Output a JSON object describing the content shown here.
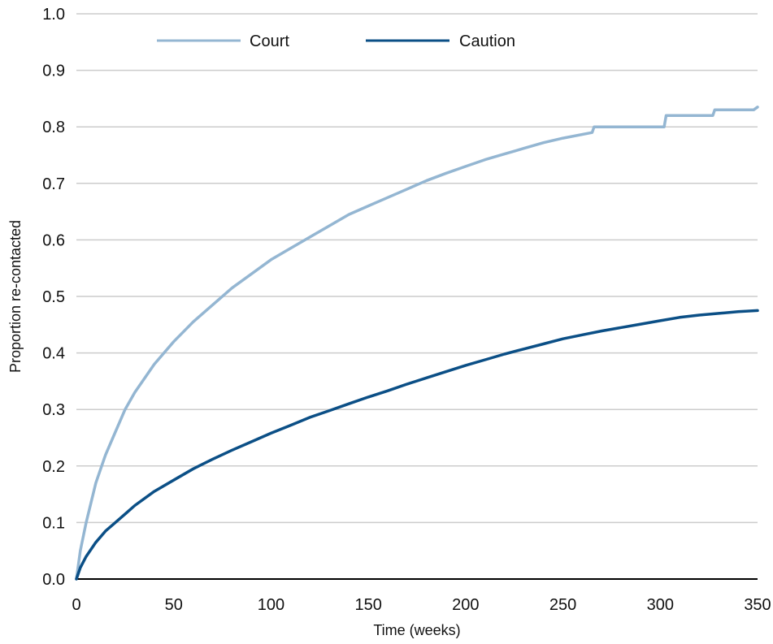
{
  "chart_data": {
    "type": "line",
    "title": "",
    "xlabel": "Time (weeks)",
    "ylabel": "Proportion re-contacted",
    "xlim": [
      0,
      350
    ],
    "ylim": [
      0,
      1.0
    ],
    "xticks": [
      "0",
      "50",
      "100",
      "150",
      "200",
      "250",
      "300",
      "350"
    ],
    "yticks": [
      "0.0",
      "0.1",
      "0.2",
      "0.3",
      "0.4",
      "0.5",
      "0.6",
      "0.7",
      "0.8",
      "0.9",
      "1.0"
    ],
    "grid": "horizontal",
    "legend_position": "top-center",
    "series": [
      {
        "name": "Court",
        "color": "#94b6d2",
        "x": [
          0,
          2,
          5,
          10,
          15,
          20,
          25,
          30,
          40,
          50,
          60,
          70,
          80,
          90,
          100,
          110,
          120,
          130,
          140,
          150,
          160,
          170,
          180,
          190,
          200,
          210,
          220,
          230,
          240,
          250,
          265,
          266,
          302,
          303,
          327,
          328,
          348,
          350
        ],
        "y": [
          0,
          0.05,
          0.1,
          0.17,
          0.22,
          0.26,
          0.3,
          0.33,
          0.38,
          0.42,
          0.455,
          0.485,
          0.515,
          0.54,
          0.565,
          0.585,
          0.605,
          0.625,
          0.645,
          0.66,
          0.675,
          0.69,
          0.705,
          0.718,
          0.73,
          0.742,
          0.752,
          0.762,
          0.772,
          0.78,
          0.79,
          0.8,
          0.8,
          0.82,
          0.82,
          0.83,
          0.83,
          0.835
        ]
      },
      {
        "name": "Caution",
        "color": "#0b4f86",
        "x": [
          0,
          2,
          5,
          10,
          15,
          20,
          25,
          30,
          40,
          50,
          60,
          70,
          80,
          90,
          100,
          110,
          120,
          130,
          140,
          150,
          160,
          170,
          180,
          190,
          200,
          210,
          220,
          230,
          240,
          250,
          260,
          270,
          280,
          290,
          300,
          310,
          320,
          330,
          340,
          350
        ],
        "y": [
          0,
          0.02,
          0.04,
          0.065,
          0.085,
          0.1,
          0.115,
          0.13,
          0.155,
          0.175,
          0.195,
          0.212,
          0.228,
          0.243,
          0.258,
          0.272,
          0.286,
          0.298,
          0.31,
          0.322,
          0.333,
          0.345,
          0.356,
          0.367,
          0.378,
          0.388,
          0.398,
          0.407,
          0.416,
          0.425,
          0.432,
          0.439,
          0.445,
          0.451,
          0.457,
          0.463,
          0.467,
          0.47,
          0.473,
          0.475
        ]
      }
    ]
  }
}
